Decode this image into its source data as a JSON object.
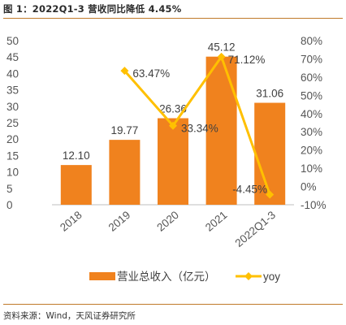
{
  "title": "图 1：2022Q1-3 营收同比降低 4.45%",
  "source": "资料来源：Wind，天风证券研究所",
  "chart_data": {
    "type": "bar+line",
    "categories": [
      "2018",
      "2019",
      "2020",
      "2021",
      "2022Q1-3"
    ],
    "series": [
      {
        "name": "营业总收入（亿元）",
        "type": "bar",
        "axis": "left",
        "values": [
          12.1,
          19.77,
          26.36,
          45.12,
          31.06
        ],
        "labels": [
          "12.10",
          "19.77",
          "26.36",
          "45.12",
          "31.06"
        ],
        "color": "#F0821E"
      },
      {
        "name": "yoy",
        "type": "line",
        "axis": "right",
        "values": [
          null,
          63.47,
          33.34,
          71.12,
          -4.45
        ],
        "labels": [
          "",
          "63.47%",
          "33.34%",
          "71.12%",
          "-4.45%"
        ],
        "color": "#FFC000"
      }
    ],
    "left_axis": {
      "min": 0,
      "max": 50,
      "step": 5,
      "ticks": [
        "0",
        "5",
        "10",
        "15",
        "20",
        "25",
        "30",
        "35",
        "40",
        "45",
        "50"
      ]
    },
    "right_axis": {
      "min": -10,
      "max": 80,
      "step": 10,
      "ticks": [
        "-10%",
        "0%",
        "10%",
        "20%",
        "30%",
        "40%",
        "50%",
        "60%",
        "70%",
        "80%"
      ]
    },
    "grid": false,
    "legend_position": "bottom"
  }
}
